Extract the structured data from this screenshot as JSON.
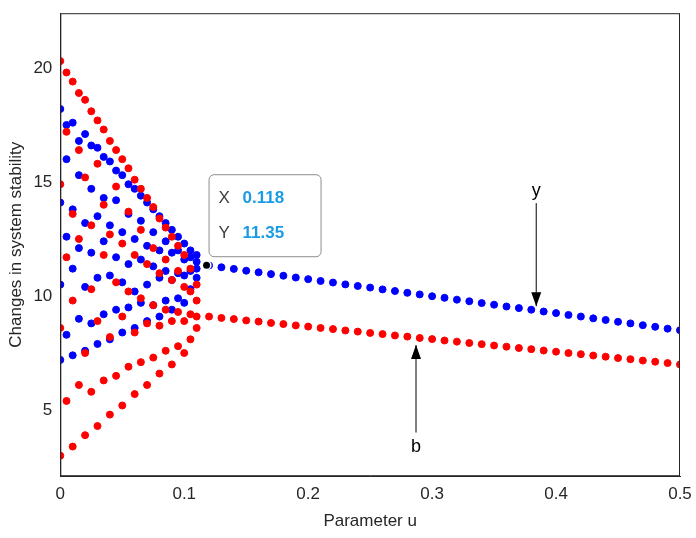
{
  "chart_data": {
    "type": "scatter",
    "x_label": "Parameter u",
    "y_label": "Changes in system stability",
    "xlim": [
      0,
      0.5
    ],
    "xticks": [
      0,
      0.1,
      0.2,
      0.3,
      0.4,
      0.5
    ],
    "ylim": [
      2.1,
      22.4
    ],
    "yticks": [
      5,
      10,
      15,
      20
    ],
    "grid": false,
    "x": [
      0,
      0,
      0,
      0,
      0.005,
      0.005,
      0.005,
      0.005,
      0.01,
      0.01,
      0.01,
      0.01,
      0.015,
      0.015,
      0.015,
      0.015,
      0.02,
      0.02,
      0.02,
      0.02,
      0.025,
      0.025,
      0.025,
      0.025,
      0.03,
      0.03,
      0.03,
      0.03,
      0.035,
      0.035,
      0.035,
      0.035,
      0.04,
      0.04,
      0.04,
      0.04,
      0.045,
      0.045,
      0.045,
      0.045,
      0.05,
      0.05,
      0.05,
      0.05,
      0.055,
      0.055,
      0.055,
      0.055,
      0.06,
      0.06,
      0.06,
      0.06,
      0.065,
      0.065,
      0.065,
      0.065,
      0.07,
      0.07,
      0.07,
      0.07,
      0.075,
      0.075,
      0.075,
      0.075,
      0.08,
      0.08,
      0.08,
      0.08,
      0.085,
      0.085,
      0.085,
      0.085,
      0.09,
      0.09,
      0.09,
      0.09,
      0.095,
      0.095,
      0.095,
      0.095,
      0.1,
      0.1,
      0.1,
      0.1,
      0.105,
      0.105,
      0.105,
      0.105,
      0.11,
      0.11,
      0.11,
      0.11,
      0.12,
      0.13,
      0.14,
      0.15,
      0.16,
      0.17,
      0.18,
      0.19,
      0.2,
      0.21,
      0.22,
      0.23,
      0.24,
      0.25,
      0.26,
      0.27,
      0.28,
      0.29,
      0.3,
      0.31,
      0.32,
      0.33,
      0.34,
      0.35,
      0.36,
      0.37,
      0.38,
      0.39,
      0.4,
      0.41,
      0.42,
      0.43,
      0.44,
      0.45,
      0.46,
      0.47,
      0.48,
      0.49,
      0.5
    ],
    "series": [
      {
        "name": "b",
        "color": "#ff0000",
        "marker": "circle",
        "values": [
          3.0,
          8.6,
          14.9,
          20.3,
          5.4,
          11.7,
          17.2,
          19.8,
          3.4,
          9.8,
          13.6,
          19.4,
          6.1,
          12.5,
          16.4,
          18.9,
          3.9,
          7.5,
          15.2,
          18.6,
          5.8,
          10.3,
          13.1,
          18.1,
          4.3,
          8.9,
          15.8,
          17.7,
          6.3,
          11.8,
          14.0,
          17.3,
          4.8,
          8.2,
          12.7,
          16.8,
          6.5,
          10.6,
          14.8,
          16.4,
          5.2,
          9.1,
          12.3,
          16.0,
          6.9,
          10.2,
          13.7,
          15.6,
          5.7,
          8.4,
          11.8,
          15.1,
          7.1,
          9.9,
          12.9,
          14.7,
          6.1,
          8.8,
          11.4,
          14.3,
          7.3,
          9.6,
          12.1,
          13.9,
          6.6,
          8.7,
          11.0,
          13.4,
          7.6,
          9.4,
          11.6,
          13.0,
          7.0,
          8.9,
          10.7,
          12.6,
          7.8,
          9.3,
          11.1,
          12.2,
          7.5,
          8.9,
          10.4,
          11.8,
          8.1,
          9.2,
          10.2,
          11.2,
          8.6,
          9.1,
          9.8,
          10.5,
          9.1,
          9.04,
          8.99,
          8.93,
          8.88,
          8.82,
          8.77,
          8.71,
          8.66,
          8.6,
          8.55,
          8.49,
          8.44,
          8.38,
          8.33,
          8.27,
          8.22,
          8.16,
          8.11,
          8.05,
          8.0,
          7.94,
          7.89,
          7.83,
          7.78,
          7.72,
          7.67,
          7.61,
          7.56,
          7.5,
          7.45,
          7.39,
          7.34,
          7.28,
          7.23,
          7.17,
          7.12,
          7.06,
          7.0
        ]
      },
      {
        "name": "y",
        "color": "#0000ff",
        "marker": "circle",
        "values": [
          7.2,
          10.5,
          14.1,
          18.2,
          8.3,
          12.6,
          16.0,
          17.5,
          7.4,
          11.2,
          13.8,
          17.6,
          9.0,
          12.1,
          15.3,
          16.8,
          7.6,
          10.4,
          13.2,
          17.1,
          8.8,
          11.9,
          14.7,
          16.6,
          7.9,
          10.8,
          13.5,
          16.5,
          9.2,
          12.4,
          14.3,
          16.1,
          8.1,
          10.9,
          13.1,
          15.9,
          9.4,
          11.7,
          14.2,
          15.5,
          8.4,
          10.6,
          12.8,
          15.3,
          9.5,
          11.4,
          13.6,
          14.9,
          8.6,
          10.2,
          12.5,
          14.7,
          9.7,
          11.6,
          13.3,
          14.4,
          8.9,
          10.5,
          12.2,
          14.1,
          9.6,
          11.3,
          12.8,
          13.8,
          9.1,
          10.8,
          12.0,
          13.5,
          9.8,
          11.1,
          12.4,
          13.2,
          9.4,
          10.7,
          11.9,
          12.9,
          9.9,
          11.0,
          12.0,
          12.6,
          9.7,
          10.9,
          11.6,
          12.3,
          10.3,
          11.1,
          11.7,
          12.0,
          10.8,
          11.2,
          11.5,
          11.8,
          11.34,
          11.26,
          11.19,
          11.11,
          11.04,
          10.96,
          10.89,
          10.81,
          10.74,
          10.66,
          10.59,
          10.51,
          10.44,
          10.37,
          10.29,
          10.22,
          10.14,
          10.07,
          9.99,
          9.92,
          9.84,
          9.77,
          9.69,
          9.62,
          9.54,
          9.47,
          9.4,
          9.32,
          9.25,
          9.17,
          9.1,
          9.02,
          8.95,
          8.87,
          8.8,
          8.72,
          8.65,
          8.57,
          8.5
        ]
      }
    ],
    "annotations": [
      {
        "type": "datatip",
        "x": 0.118,
        "y": 11.35,
        "labels": [
          "X",
          "Y"
        ]
      },
      {
        "type": "arrow",
        "series": "y",
        "x": 0.384,
        "y": 14.6,
        "arrow_to": [
          0.384,
          9.55
        ]
      },
      {
        "type": "arrow",
        "series": "b",
        "x": 0.287,
        "y": 3.4,
        "arrow_to": [
          0.287,
          7.85
        ]
      }
    ]
  }
}
